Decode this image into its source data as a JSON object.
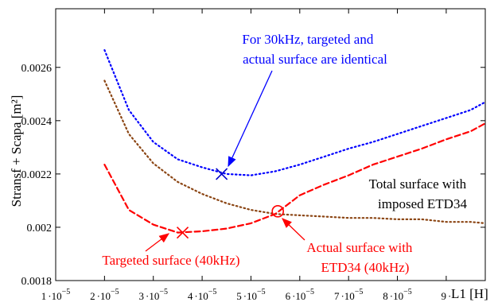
{
  "chart_data": {
    "type": "line",
    "title": "",
    "xlabel": "L1 [H]",
    "ylabel": "Stransf + Scapa [m²]",
    "xlim": [
      1e-05,
      9.8e-05
    ],
    "ylim": [
      0.0018,
      0.00282
    ],
    "grid": false,
    "x_ticks": [
      {
        "value": 1e-05,
        "mantissa": "1",
        "suffix": "10",
        "exp": "−5"
      },
      {
        "value": 2e-05,
        "mantissa": "2",
        "suffix": "10",
        "exp": "−5"
      },
      {
        "value": 3e-05,
        "mantissa": "3",
        "suffix": "10",
        "exp": "−5"
      },
      {
        "value": 4e-05,
        "mantissa": "4",
        "suffix": "10",
        "exp": "−5"
      },
      {
        "value": 5e-05,
        "mantissa": "5",
        "suffix": "10",
        "exp": "−5"
      },
      {
        "value": 6e-05,
        "mantissa": "6",
        "suffix": "10",
        "exp": "−5"
      },
      {
        "value": 7e-05,
        "mantissa": "7",
        "suffix": "10",
        "exp": "−5"
      },
      {
        "value": 8e-05,
        "mantissa": "8",
        "suffix": "10",
        "exp": "−5"
      },
      {
        "value": 9e-05,
        "mantissa": "9",
        "suffix": "",
        "exp": ""
      }
    ],
    "y_ticks": [
      {
        "value": 0.0018,
        "label": "0.0018"
      },
      {
        "value": 0.002,
        "label": "0.002"
      },
      {
        "value": 0.0022,
        "label": "0.0022"
      },
      {
        "value": 0.0024,
        "label": "0.0024"
      },
      {
        "value": 0.0026,
        "label": "0.0026"
      }
    ],
    "series": [
      {
        "color": "#0000ff",
        "style": "dotted",
        "x": [
          2e-05,
          2.5e-05,
          3e-05,
          3.5e-05,
          4e-05,
          4.5e-05,
          5e-05,
          5.5e-05,
          6e-05,
          6.5e-05,
          7e-05,
          7.5e-05,
          8e-05,
          8.5e-05,
          9e-05,
          9.5e-05,
          9.8e-05
        ],
        "y": [
          0.002665,
          0.00244,
          0.00232,
          0.002255,
          0.002225,
          0.0022,
          0.002195,
          0.00221,
          0.002235,
          0.002265,
          0.002295,
          0.00232,
          0.00235,
          0.00238,
          0.00241,
          0.00244,
          0.00247
        ]
      },
      {
        "color": "#8b4513",
        "style": "dotted",
        "x": [
          2e-05,
          2.5e-05,
          3e-05,
          3.5e-05,
          4e-05,
          4.5e-05,
          5e-05,
          5.5e-05,
          6e-05,
          6.5e-05,
          7e-05,
          7.5e-05,
          8e-05,
          8.5e-05,
          9e-05,
          9.5e-05,
          9.8e-05
        ],
        "y": [
          0.00255,
          0.00235,
          0.00224,
          0.00217,
          0.002125,
          0.00209,
          0.002065,
          0.00205,
          0.002045,
          0.00204,
          0.002035,
          0.002035,
          0.00203,
          0.00203,
          0.00202,
          0.00202,
          0.002015
        ]
      },
      {
        "color": "#ff0000",
        "style": "dashed",
        "x": [
          2e-05,
          2.5e-05,
          3e-05,
          3.5e-05,
          4e-05,
          4.5e-05,
          5e-05,
          5.5e-05,
          6e-05,
          6.5e-05,
          7e-05,
          7.5e-05,
          8e-05,
          8.5e-05,
          9e-05,
          9.5e-05,
          9.8e-05
        ],
        "y": [
          0.002235,
          0.002065,
          0.00201,
          0.00198,
          0.001985,
          0.001995,
          0.002015,
          0.00205,
          0.00212,
          0.00216,
          0.002195,
          0.002235,
          0.002265,
          0.002295,
          0.00233,
          0.00236,
          0.00239
        ]
      }
    ],
    "markers": [
      {
        "name": "blue-x-marker",
        "shape": "x",
        "x": 4.4e-05,
        "y": 0.0022,
        "color": "#0000cc"
      },
      {
        "name": "red-x-marker",
        "shape": "x",
        "x": 3.6e-05,
        "y": 0.00198,
        "color": "#ff0000"
      },
      {
        "name": "red-circle-marker",
        "shape": "circle",
        "x": 5.55e-05,
        "y": 0.00206,
        "color": "#ff0000"
      }
    ],
    "annotations": [
      {
        "name": "annotation-30khz",
        "lines": [
          "For 30kHz, targeted and",
          "actual surface are identical"
        ],
        "color": "#0000ff"
      },
      {
        "name": "annotation-total-surface",
        "lines": [
          "Total surface with",
          "imposed ETD34"
        ],
        "color": "#000000"
      },
      {
        "name": "annotation-actual-surface",
        "lines": [
          "Actual surface with",
          "ETD34 (40kHz)"
        ],
        "color": "#ff0000"
      },
      {
        "name": "annotation-targeted-surface",
        "lines": [
          "Targeted surface (40kHz)"
        ],
        "color": "#ff0000"
      }
    ]
  }
}
